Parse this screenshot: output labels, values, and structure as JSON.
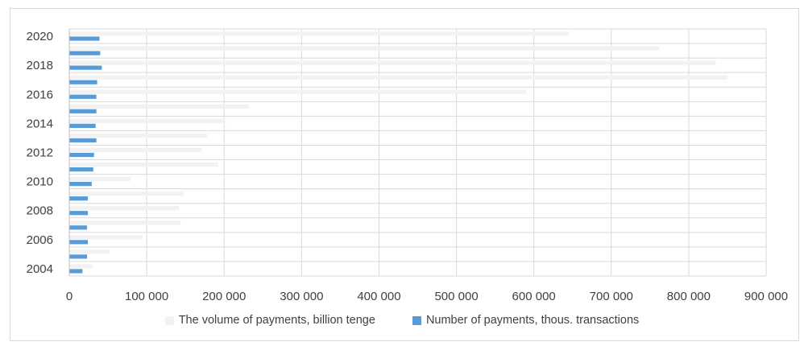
{
  "chart_data": {
    "type": "bar",
    "orientation": "horizontal",
    "categories": [
      "2004",
      "2005",
      "2006",
      "2007",
      "2008",
      "2009",
      "2010",
      "2011",
      "2012",
      "2013",
      "2014",
      "2015",
      "2016",
      "2017",
      "2018",
      "2019",
      "2020"
    ],
    "y_tick_labels": [
      "2004",
      "2006",
      "2008",
      "2010",
      "2012",
      "2014",
      "2016",
      "2018",
      "2020"
    ],
    "x_tick_labels": [
      "0",
      "100 000",
      "200 000",
      "300 000",
      "400 000",
      "500 000",
      "600 000",
      "700 000",
      "800 000",
      "900 000"
    ],
    "x_ticks": [
      0,
      100000,
      200000,
      300000,
      400000,
      500000,
      600000,
      700000,
      800000,
      900000
    ],
    "xlim": [
      0,
      900000
    ],
    "grid": true,
    "legend_position": "bottom",
    "series": [
      {
        "name": "The volume of payments, billion tenge",
        "color": "#f2f2f2",
        "values": [
          30000,
          52000,
          95000,
          144000,
          142000,
          148000,
          79000,
          192000,
          171000,
          178000,
          202000,
          232000,
          590000,
          850000,
          835000,
          762000,
          645000
        ]
      },
      {
        "name": "Number of payments, thous. transactions",
        "color": "#5b9bd5",
        "values": [
          17000,
          23000,
          24000,
          23000,
          24000,
          24000,
          29000,
          31000,
          32000,
          35000,
          34000,
          35000,
          35000,
          36000,
          42000,
          40000,
          39000
        ]
      }
    ]
  }
}
